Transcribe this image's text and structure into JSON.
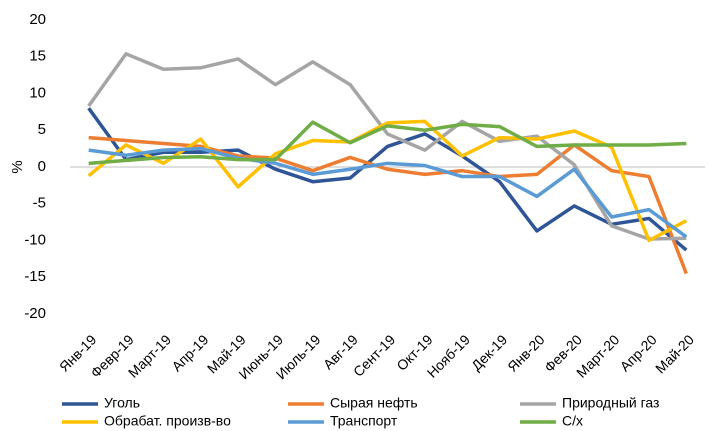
{
  "chart_data": {
    "type": "line",
    "y_label": "%",
    "categories": [
      "Янв-19",
      "Февр-19",
      "Март-19",
      "Апр-19",
      "Май-19",
      "Июнь-19",
      "Июль-19",
      "Авг-19",
      "Сент-19",
      "Окт-19",
      "Нояб-19",
      "Дек-19",
      "Янв-20",
      "Фев-20",
      "Март-20",
      "Апр-20",
      "Май-20"
    ],
    "series": [
      {
        "name": "Уголь",
        "color": "#2f5597",
        "values": [
          8,
          1,
          2,
          2,
          2.3,
          -0.3,
          -2,
          -1.5,
          2.8,
          4.5,
          1.5,
          -2,
          -8.7,
          -5.3,
          -7.8,
          -7,
          -11.3
        ]
      },
      {
        "name": "Сырая нефть",
        "color": "#ed7d31",
        "values": [
          4,
          3.6,
          3.2,
          2.8,
          1.5,
          1.2,
          -0.5,
          1.3,
          -0.3,
          -1,
          -0.5,
          -1.3,
          -1,
          3,
          -0.5,
          -1.3,
          -14.5
        ]
      },
      {
        "name": "Природный газ",
        "color": "#a5a5a5",
        "values": [
          8.3,
          15.4,
          13.3,
          13.5,
          14.7,
          11.2,
          14.3,
          11.2,
          4.5,
          2.3,
          6.2,
          3.5,
          4.2,
          0.3,
          -8,
          -9.8,
          -9.7
        ]
      },
      {
        "name": "Обрабат. произв-во",
        "color": "#ffc000",
        "values": [
          -1.2,
          3,
          0.5,
          3.8,
          -2.7,
          1.8,
          3.6,
          3.4,
          6,
          6.2,
          1.5,
          4,
          3.8,
          4.9,
          2.7,
          -10,
          -7.3
        ]
      },
      {
        "name": "Транспорт",
        "color": "#5b9bd5",
        "values": [
          2.3,
          1.6,
          2.3,
          2.5,
          1.2,
          0.5,
          -1,
          -0.3,
          0.5,
          0.2,
          -1.3,
          -1.3,
          -4,
          -0.3,
          -6.8,
          -5.8,
          -9.5
        ]
      },
      {
        "name": "С/х",
        "color": "#70ad47",
        "values": [
          0.5,
          0.9,
          1.3,
          1.4,
          1,
          1,
          6.1,
          3.3,
          5.6,
          5,
          5.8,
          5.5,
          2.8,
          3,
          3,
          3,
          3.2
        ]
      }
    ],
    "ylim": [
      -20,
      20
    ],
    "yticks": [
      -20,
      -15,
      -10,
      -5,
      0,
      5,
      10,
      15,
      20
    ],
    "grid": false,
    "legend": "bottom"
  }
}
